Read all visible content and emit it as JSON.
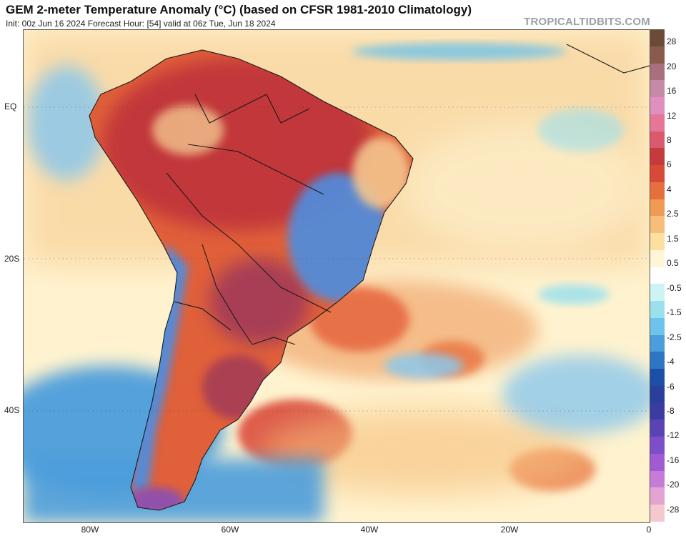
{
  "header": {
    "title": "GEM 2-meter Temperature Anomaly (°C) (based on CFSR 1981-2010 Climatology)",
    "subtitle": "Init: 00z Jun 16 2024   Forecast Hour: [54]   valid at 06z Tue, Jun 18 2024",
    "watermark": "TROPICALTIDBITS.COM"
  },
  "axes": {
    "lat_labels": [
      "EQ",
      "20S",
      "40S"
    ],
    "lon_labels": [
      "80W",
      "60W",
      "40W",
      "20W",
      "0"
    ]
  },
  "colorbar": {
    "colors": [
      "#6b4a3a",
      "#8a5b4c",
      "#a8707e",
      "#c689a6",
      "#df8fc0",
      "#e47799",
      "#d85a6c",
      "#c53a3d",
      "#d84a35",
      "#e5703e",
      "#f09a55",
      "#f6be7a",
      "#fbe09f",
      "#fff6d8",
      "#ffffff",
      "#cdf3f4",
      "#9be0ee",
      "#6ec3ea",
      "#4b9ddc",
      "#2f75c5",
      "#1e4fa8",
      "#2a3f9a",
      "#3a3ca0",
      "#5a44b5",
      "#7d4ec8",
      "#a25ad4",
      "#c77bd8",
      "#e3a4d4",
      "#f4c8cf"
    ],
    "labels": [
      "28",
      "20",
      "16",
      "12",
      "8",
      "6",
      "4",
      "2.5",
      "1.5",
      "0.5",
      "-0.5",
      "-1.5",
      "-2.5",
      "-4",
      "-6",
      "-8",
      "-12",
      "-16",
      "-20",
      "-28"
    ]
  },
  "map": {
    "colors": {
      "land_hot": "#c0353a",
      "land_very_hot": "#a23b58",
      "land_warm": "#e0603a",
      "land_cool": "#4d8ee0",
      "land_mild": "#f3c58e",
      "ocean_warm": "#f8d39c",
      "ocean_pale": "#fff3cf",
      "ocean_cold": "#4b9ddc",
      "ocean_cold_light": "#8cc8ec",
      "ocean_hot_patch": "#e6653c",
      "border": "#1a1a1a"
    }
  }
}
